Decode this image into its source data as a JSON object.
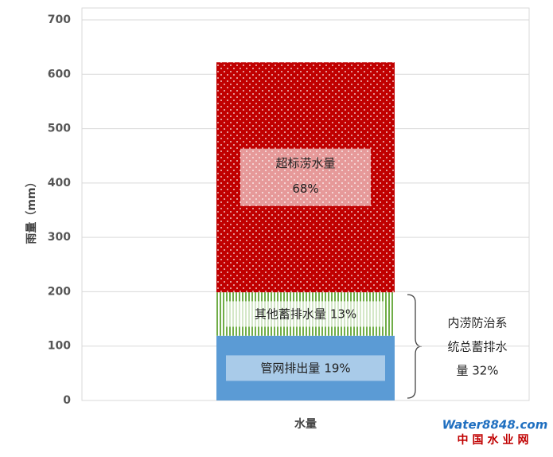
{
  "chart_data": {
    "type": "stacked_bar",
    "y_label": "雨量（mm）",
    "categories": [
      "水量"
    ],
    "series": [
      {
        "name": "管网排出量",
        "share_label": "19%",
        "color": "#5b9bd5",
        "values": [
          119
        ]
      },
      {
        "name": "其他蓄排水量",
        "share_label": "13%",
        "color": "#70ad47",
        "values": [
          80
        ]
      },
      {
        "name": "超标涝水量",
        "share_label": "68%",
        "color": "#c00000",
        "values": [
          423
        ]
      }
    ],
    "ylim": [
      0,
      700
    ],
    "yticks": [
      0,
      100,
      200,
      300,
      400,
      500,
      600,
      700
    ],
    "grid": true,
    "annotation": [
      "内涝防治系",
      "统总蓄排水",
      "量 32%"
    ],
    "watermark": [
      "Water8848.com",
      "中国水业网"
    ]
  }
}
